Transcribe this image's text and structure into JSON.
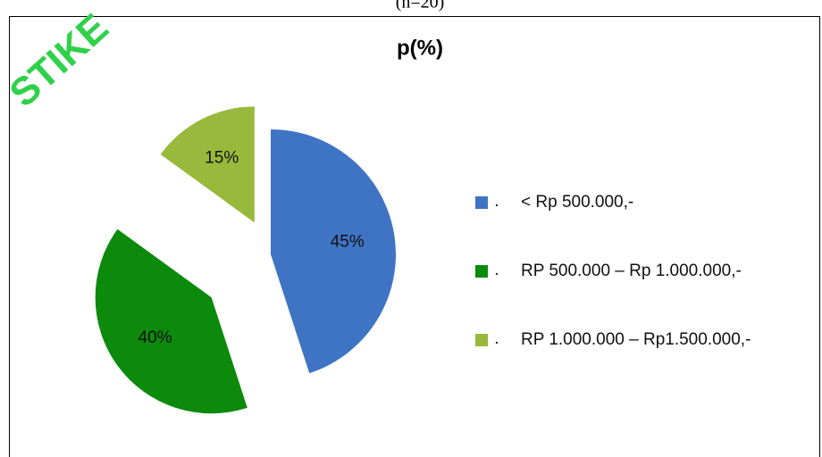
{
  "caption": "(n=20)",
  "watermark": "STIKE",
  "chart_data": {
    "type": "pie",
    "title": "p(%)",
    "categories": [
      "< Rp 500.000,-",
      "RP 500.000 – Rp 1.000.000,-",
      "RP 1.000.000 –  Rp1.500.000,-"
    ],
    "values": [
      45,
      40,
      15
    ],
    "value_labels": [
      "45%",
      "40%",
      "15%"
    ],
    "colors": [
      "#3f74c4",
      "#0b8a0b",
      "#98b93c"
    ],
    "legend": "right"
  }
}
